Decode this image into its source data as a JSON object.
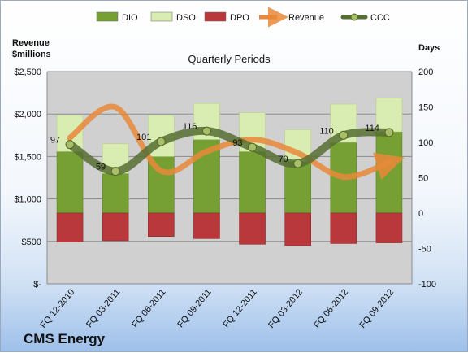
{
  "company": "CMS Energy",
  "chart_data": {
    "type": "bar",
    "title": "Quarterly Periods",
    "ylabel_left": "Revenue $millions",
    "ylabel_right": "Days",
    "categories": [
      "FQ 12-2010",
      "FQ 03-2011",
      "FQ 06-2011",
      "FQ 09-2011",
      "FQ 12-2011",
      "FQ 03-2012",
      "FQ 06-2012",
      "FQ 09-2012"
    ],
    "left_axis": {
      "ylim": [
        0,
        2500
      ],
      "ticks": [
        0,
        500,
        1000,
        1500,
        2000,
        2500
      ],
      "tick_labels": [
        "$-",
        "$500",
        "$1,000",
        "$1,500",
        "$2,000",
        "$2,500"
      ]
    },
    "right_axis": {
      "ylim": [
        -100,
        200
      ],
      "ticks": [
        -100,
        -50,
        0,
        50,
        100,
        150,
        200
      ],
      "tick_labels": [
        "-100",
        "-50",
        "0",
        "50",
        "100",
        "150",
        "200"
      ]
    },
    "legend": {
      "position": "top",
      "entries": [
        "DIO",
        "DSO",
        "DPO",
        "Revenue",
        "CCC"
      ]
    },
    "grid": true,
    "series": [
      {
        "name": "DIO",
        "axis": "right",
        "kind": "stacked-bar",
        "color": "#77a034",
        "values": [
          87,
          56,
          80,
          104,
          87,
          73,
          100,
          115
        ]
      },
      {
        "name": "DSO",
        "axis": "right",
        "kind": "stacked-bar",
        "color": "#d9ecb2",
        "values": [
          51,
          42,
          58,
          51,
          55,
          45,
          54,
          48
        ]
      },
      {
        "name": "DPO",
        "axis": "right",
        "kind": "negative-bar",
        "color": "#b8383c",
        "values": [
          -41,
          -39,
          -33,
          -36,
          -44,
          -46,
          -43,
          -42
        ]
      },
      {
        "name": "Revenue",
        "axis": "left",
        "kind": "line",
        "color": "#e9883a",
        "values": [
          1720,
          2080,
          1330,
          1560,
          1700,
          1540,
          1260,
          1430
        ]
      },
      {
        "name": "CCC",
        "axis": "right",
        "kind": "line",
        "color": "#566e32",
        "values": [
          97,
          59,
          101,
          116,
          93,
          70,
          110,
          114
        ]
      }
    ],
    "ccc_labels": [
      "97",
      "59",
      "101",
      "116",
      "93",
      "70",
      "110",
      "114"
    ]
  }
}
